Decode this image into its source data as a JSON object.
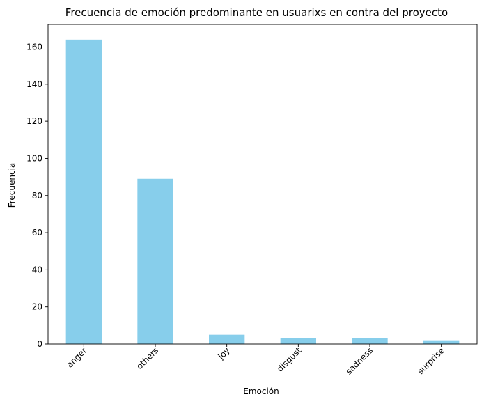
{
  "chart_data": {
    "type": "bar",
    "title": "Frecuencia de emoción predominante en usuarixs en contra del proyecto",
    "xlabel": "Emoción",
    "ylabel": "Frecuencia",
    "categories": [
      "anger",
      "others",
      "joy",
      "disgust",
      "sadness",
      "surprise"
    ],
    "values": [
      164,
      89,
      5,
      3,
      3,
      2
    ],
    "ylim": [
      0,
      172.2
    ],
    "yticks": [
      0,
      20,
      40,
      60,
      80,
      100,
      120,
      140,
      160
    ],
    "grid": false,
    "legend": "none",
    "bar_color": "#87CEEB",
    "xtick_rotation_deg": 45
  }
}
